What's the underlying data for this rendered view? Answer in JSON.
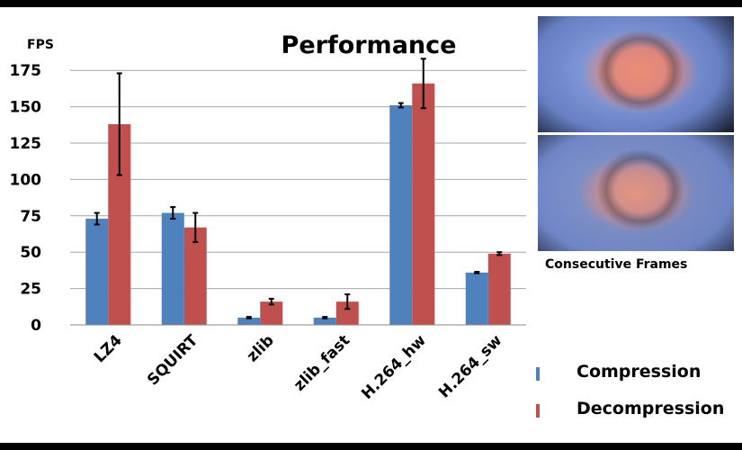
{
  "chart_data": {
    "type": "bar",
    "title": "Performance",
    "ylabel": "FPS",
    "ylim": [
      0,
      187.5
    ],
    "yticks": [
      0,
      25,
      50,
      75,
      100,
      125,
      150,
      175
    ],
    "grid": true,
    "legend_position": "bottom-right",
    "categories": [
      "LZ4",
      "SQUIRT",
      "zlib",
      "zlib_fast",
      "H.264_hw",
      "H.264_sw"
    ],
    "series": [
      {
        "name": "Compression",
        "color": "#4F81BD",
        "values": [
          73,
          77,
          5,
          5,
          151,
          36
        ],
        "errors": [
          4,
          4,
          0.5,
          0.5,
          1.5,
          0.5
        ]
      },
      {
        "name": "Decompression",
        "color": "#C0504D",
        "values": [
          138,
          67,
          16,
          16,
          166,
          49
        ],
        "errors": [
          35,
          10,
          2,
          5,
          17,
          1
        ]
      }
    ]
  },
  "frames": {
    "caption": "Consecutive Frames"
  }
}
